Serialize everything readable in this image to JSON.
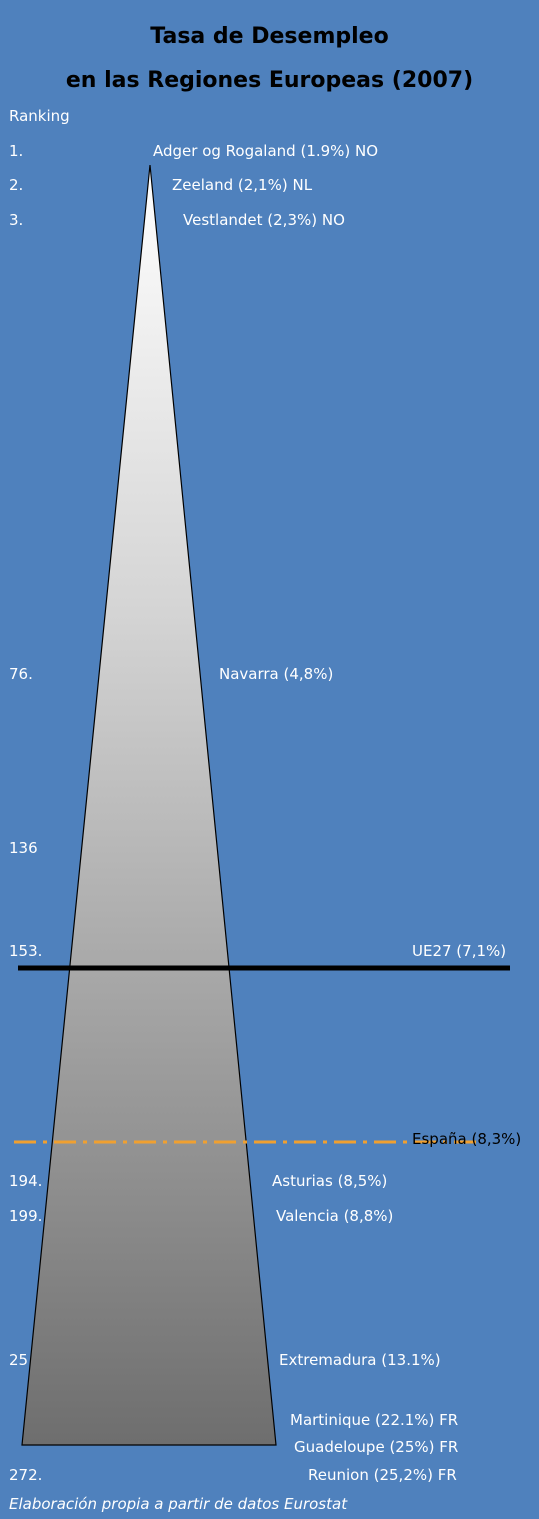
{
  "title_line1": "Tasa de Desempleo",
  "title_line2": "en las Regiones Europeas (2007)",
  "ranking_header": "Ranking",
  "rank_numbers": {
    "r1": "1.",
    "r2": "2.",
    "r3": "3.",
    "r76": "76.",
    "r136": "136",
    "r153": "153.",
    "r194": "194.",
    "r199": "199.",
    "r25": "25",
    "r272": "272."
  },
  "regions": {
    "adger": "Adger og Rogaland (1.9%) NO",
    "zeeland": "Zeeland (2,1%) NL",
    "vestlandet": "Vestlandet (2,3%) NO",
    "navarra": "Navarra (4,8%)",
    "ue27": "UE27 (7,1%)",
    "espana": "España (8,3%)",
    "asturias": "Asturias (8,5%)",
    "valencia": "Valencia (8,8%)",
    "extremadura": "Extremadura (13.1%)",
    "martinique": "Martinique (22.1%) FR",
    "guadeloupe": "Guadeloupe (25%) FR",
    "reunion": "Reunion (25,2%) FR"
  },
  "footer": "Elaboración propia a partir de datos Eurostat",
  "colors": {
    "background": "#4f81bd",
    "ue27_line": "#000000",
    "espana_line": "#f0a030",
    "triangle_top": "#ffffff",
    "triangle_bottom": "#6e6e6e"
  }
}
